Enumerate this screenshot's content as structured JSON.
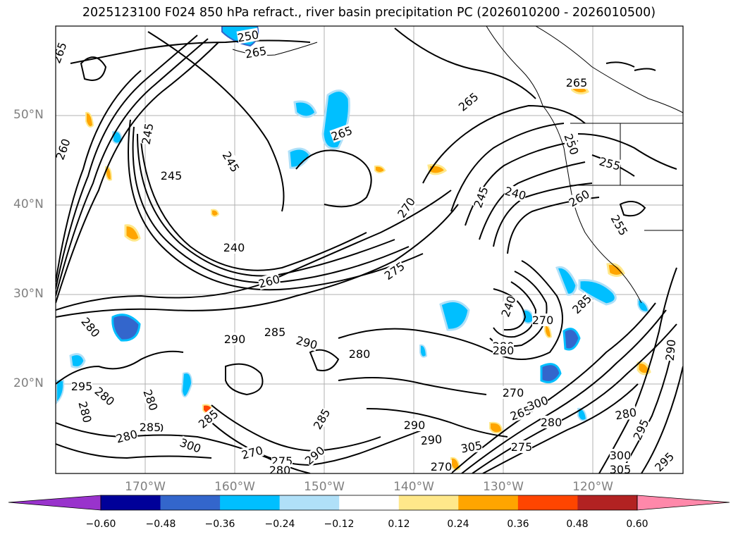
{
  "title": "2025123100 F024 850 hPa refract., river basin precipitation PC (2026010200 - 2026010500)",
  "map": {
    "lat_labels": [
      "50°N",
      "40°N",
      "30°N",
      "20°N"
    ],
    "lon_labels": [
      "170°W",
      "160°W",
      "150°W",
      "140°W",
      "130°W",
      "120°W"
    ],
    "contour_labels": [
      "265",
      "250",
      "265",
      "260",
      "245",
      "245",
      "245",
      "240",
      "260",
      "280",
      "265",
      "265",
      "270",
      "275",
      "245",
      "240",
      "260",
      "255",
      "255",
      "265",
      "250",
      "285",
      "290",
      "285",
      "290",
      "280",
      "295",
      "280",
      "280",
      "280",
      "285",
      "300",
      "280",
      "285",
      "300",
      "270",
      "275",
      "280",
      "290",
      "285",
      "290",
      "290",
      "270",
      "305",
      "275",
      "270",
      "265",
      "300",
      "280",
      "280",
      "295",
      "300",
      "305",
      "295",
      "290",
      "270",
      "280",
      "280",
      "240"
    ],
    "colors": {
      "coast": "#000000",
      "grid": "#b0b0b0",
      "contour": "#000000"
    }
  },
  "colorbar": {
    "colors": [
      "#9933cc",
      "#000099",
      "#3366cc",
      "#00bfff",
      "#b0e0f8",
      "#ffffff",
      "#ffe88a",
      "#ffa500",
      "#ff4500",
      "#b22222",
      "#ff88aa"
    ],
    "ticks": [
      "−0.60",
      "−0.48",
      "−0.36",
      "−0.24",
      "−0.12",
      "0.12",
      "0.24",
      "0.36",
      "0.48",
      "0.60"
    ]
  }
}
